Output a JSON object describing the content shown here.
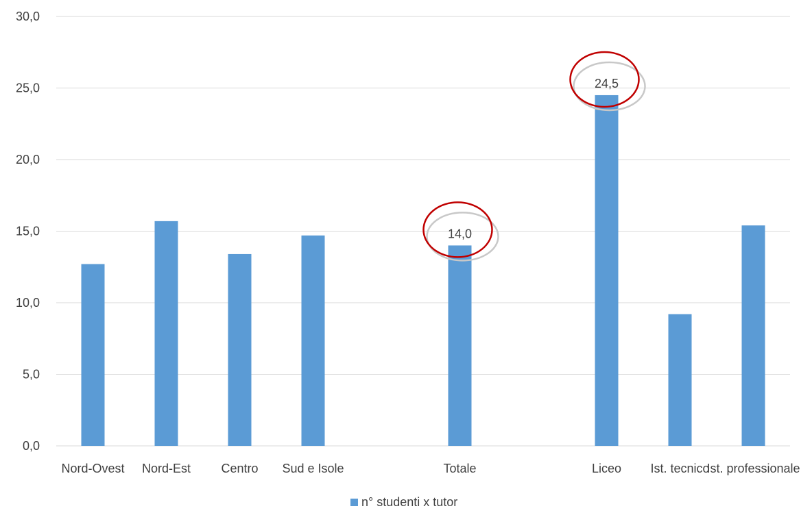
{
  "chart_data": {
    "type": "bar",
    "categories": [
      "Nord-Ovest",
      "Nord-Est",
      "Centro",
      "Sud e Isole",
      "",
      "Totale",
      "",
      "Liceo",
      "Ist. tecnico",
      "Ist. professionale"
    ],
    "series": [
      {
        "name": "n° studenti x tutor",
        "values": [
          12.7,
          15.7,
          13.4,
          14.7,
          null,
          14.0,
          null,
          24.5,
          9.2,
          15.4
        ],
        "color": "#5b9bd5"
      }
    ],
    "y_ticks": [
      "0,0",
      "5,0",
      "10,0",
      "15,0",
      "20,0",
      "25,0",
      "30,0"
    ],
    "ylim": [
      0,
      30
    ],
    "grid": true,
    "legend_position": "bottom",
    "data_labels": [
      {
        "category": "Totale",
        "text": "14,0"
      },
      {
        "category": "Liceo",
        "text": "24,5"
      }
    ],
    "annotation_color": "#c00000",
    "gridline_color": "#d9d9d9"
  }
}
